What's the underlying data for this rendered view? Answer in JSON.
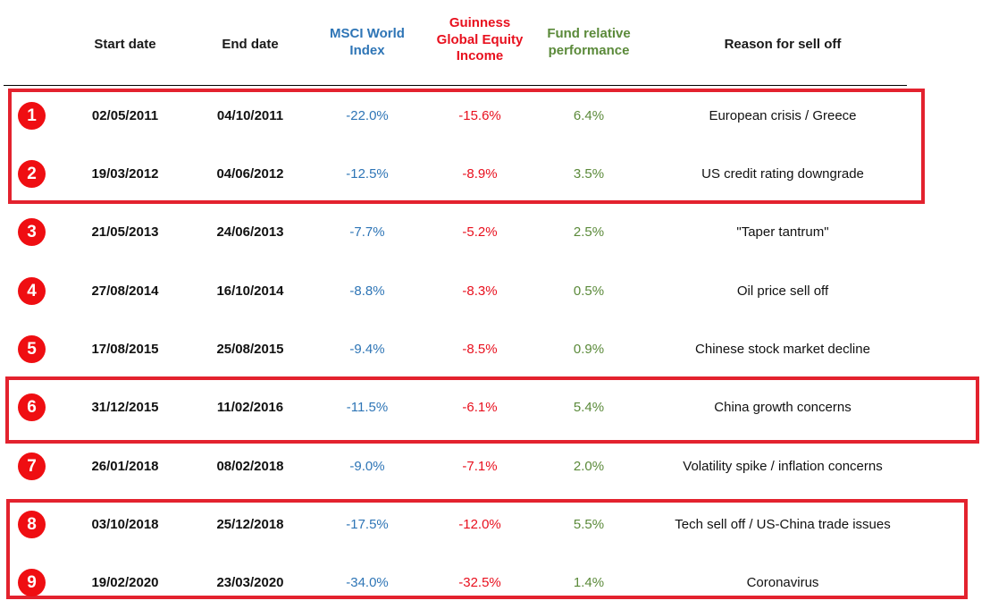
{
  "table": {
    "headers": {
      "start_date": "Start date",
      "end_date": "End date",
      "msci": [
        "MSCI World",
        "Index"
      ],
      "guinness": [
        "Guinness",
        "Global Equity",
        "Income"
      ],
      "fund_relative": [
        "Fund relative",
        "performance"
      ],
      "reason": "Reason for sell off"
    },
    "rows": [
      {
        "num": "1",
        "start": "02/05/2011",
        "end": "04/10/2011",
        "msci": "-22.0%",
        "guinness": "-15.6%",
        "fund": "6.4%",
        "reason": "European crisis / Greece"
      },
      {
        "num": "2",
        "start": "19/03/2012",
        "end": "04/06/2012",
        "msci": "-12.5%",
        "guinness": "-8.9%",
        "fund": "3.5%",
        "reason": "US credit rating downgrade"
      },
      {
        "num": "3",
        "start": "21/05/2013",
        "end": "24/06/2013",
        "msci": "-7.7%",
        "guinness": "-5.2%",
        "fund": "2.5%",
        "reason": "\"Taper tantrum\""
      },
      {
        "num": "4",
        "start": "27/08/2014",
        "end": "16/10/2014",
        "msci": "-8.8%",
        "guinness": "-8.3%",
        "fund": "0.5%",
        "reason": "Oil price sell off"
      },
      {
        "num": "5",
        "start": "17/08/2015",
        "end": "25/08/2015",
        "msci": "-9.4%",
        "guinness": "-8.5%",
        "fund": "0.9%",
        "reason": "Chinese stock market decline"
      },
      {
        "num": "6",
        "start": "31/12/2015",
        "end": "11/02/2016",
        "msci": "-11.5%",
        "guinness": "-6.1%",
        "fund": "5.4%",
        "reason": "China growth concerns"
      },
      {
        "num": "7",
        "start": "26/01/2018",
        "end": "08/02/2018",
        "msci": "-9.0%",
        "guinness": "-7.1%",
        "fund": "2.0%",
        "reason": "Volatility spike / inflation concerns"
      },
      {
        "num": "8",
        "start": "03/10/2018",
        "end": "25/12/2018",
        "msci": "-17.5%",
        "guinness": "-12.0%",
        "fund": "5.5%",
        "reason": "Tech sell off / US-China trade issues"
      },
      {
        "num": "9",
        "start": "19/02/2020",
        "end": "23/03/2020",
        "msci": "-34.0%",
        "guinness": "-32.5%",
        "fund": "1.4%",
        "reason": "Coronavirus"
      }
    ],
    "highlighted_groups": [
      [
        "1",
        "2"
      ],
      [
        "6"
      ],
      [
        "8",
        "9"
      ]
    ]
  },
  "colors": {
    "msci": "#2e75b6",
    "guinness": "#e8101e",
    "fund": "#5b8a3a",
    "badge": "#ef0e12",
    "highlight_box": "#e3222e"
  }
}
